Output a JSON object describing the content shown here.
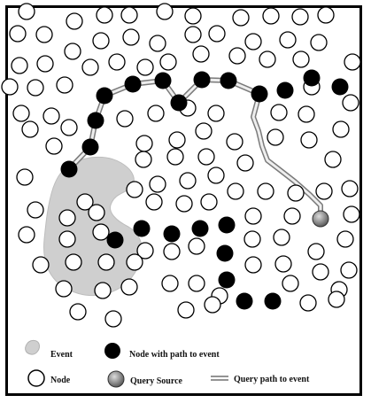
{
  "colors": {
    "event_fill": "#cfcfcf",
    "path_node_fill": "#000000",
    "node_fill": "#ffffff",
    "query_source_fill": "#8a8a8a",
    "query_path": "#999999"
  },
  "legend": {
    "event": "Event",
    "node_with_path": "Node with path to event",
    "node": "Node",
    "query_source": "Query Source",
    "query_path": "Query path to event"
  }
}
